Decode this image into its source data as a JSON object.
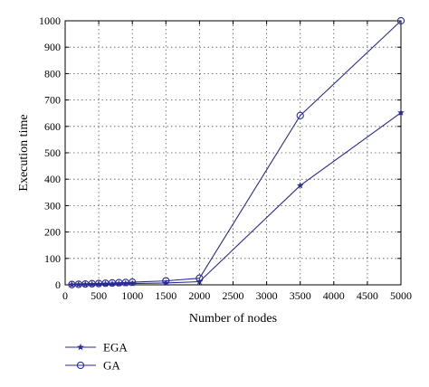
{
  "chart_data": {
    "type": "line",
    "title": "",
    "xlabel": "Number of nodes",
    "ylabel": "Execution time",
    "xlim": [
      0,
      5000
    ],
    "ylim": [
      0,
      1000
    ],
    "xticks": [
      0,
      500,
      1000,
      1500,
      2000,
      2500,
      3000,
      3500,
      4000,
      4500,
      5000
    ],
    "yticks": [
      0,
      100,
      200,
      300,
      400,
      500,
      600,
      700,
      800,
      900,
      1000
    ],
    "grid": true,
    "legend_position": "bottom-left, outside",
    "line_color": "#2a2a9a",
    "x": [
      100,
      200,
      300,
      400,
      500,
      600,
      700,
      800,
      900,
      1000,
      1500,
      2000,
      3500,
      5000
    ],
    "series": [
      {
        "name": "EGA",
        "marker": "star",
        "values": [
          0.5,
          1,
          1.5,
          2,
          2.5,
          3,
          3.5,
          4,
          4.5,
          5,
          7,
          12,
          376,
          652
        ]
      },
      {
        "name": "GA",
        "marker": "circle",
        "values": [
          1,
          2,
          3,
          4,
          5,
          6,
          7,
          8,
          9,
          10,
          15,
          25,
          641,
          1000
        ]
      }
    ]
  }
}
